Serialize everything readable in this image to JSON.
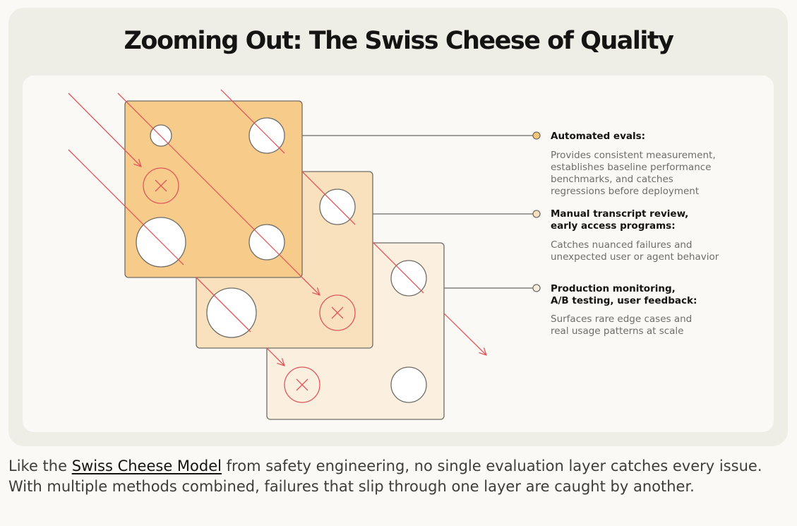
{
  "title": "Zooming Out: The Swiss Cheese of Quality",
  "layers": [
    {
      "heading_lines": [
        "Automated evals:"
      ],
      "description_lines": [
        "Provides consistent measurement,",
        "establishes baseline performance",
        "benchmarks, and catches",
        "regressions before deployment"
      ]
    },
    {
      "heading_lines": [
        "Manual transcript review,",
        "early access programs:"
      ],
      "description_lines": [
        "Catches nuanced failures and",
        "unexpected user or agent behavior"
      ]
    },
    {
      "heading_lines": [
        "Production monitoring,",
        "A/B testing, user feedback:"
      ],
      "description_lines": [
        "Surfaces rare edge cases and",
        "real usage patterns at scale"
      ]
    }
  ],
  "caption": {
    "before": "Like the ",
    "link": "Swiss Cheese Model",
    "after": " from safety engineering, no single evaluation layer catches every issue. With multiple methods combined, failures that slip through one layer are caught by another."
  },
  "colors": {
    "layer_1": "#f7cc8a",
    "layer_2": "#f9e1bd",
    "layer_3": "#fbefe0",
    "failure_arrow": "#e0575b",
    "connector": "#6e6c66",
    "dot_filled": "#f6c777"
  }
}
